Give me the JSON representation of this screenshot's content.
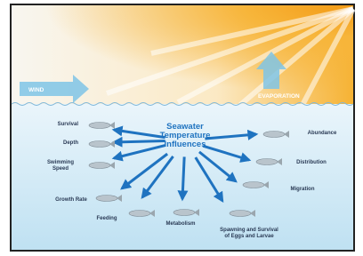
{
  "labels": {
    "wind": "WIND",
    "evaporation": "EVAPORATION"
  },
  "center_title": {
    "lines": [
      "Seawater",
      "Temperature",
      "Influences"
    ]
  },
  "influences": [
    {
      "lines": [
        "Survival"
      ]
    },
    {
      "lines": [
        "Depth"
      ]
    },
    {
      "lines": [
        "Swimming",
        "Speed"
      ]
    },
    {
      "lines": [
        "Growth Rate"
      ]
    },
    {
      "lines": [
        "Feeding"
      ]
    },
    {
      "lines": [
        "Metabolism"
      ]
    },
    {
      "lines": [
        "Spawning and Survival",
        "of Eggs and Larvae"
      ]
    },
    {
      "lines": [
        "Migration"
      ]
    },
    {
      "lines": [
        "Distribution"
      ]
    },
    {
      "lines": [
        "Abundance"
      ]
    }
  ]
}
